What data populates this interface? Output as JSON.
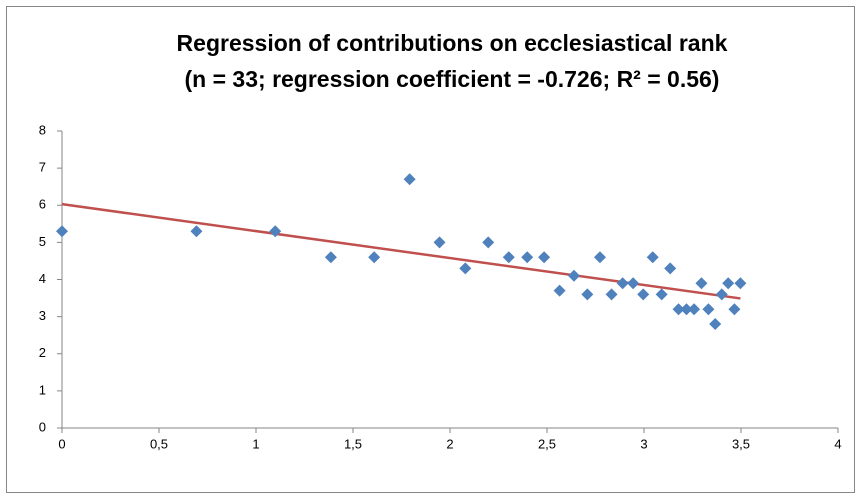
{
  "chart_data": {
    "type": "scatter",
    "title_lines": [
      "Regression of contributions on ecclesiastical rank",
      "(n = 33; regression coefficient = -0.726; R² = 0.56)"
    ],
    "series": [
      {
        "color": "#4f81bd",
        "x": [
          0,
          0.693,
          1.099,
          1.386,
          1.609,
          1.792,
          1.946,
          2.079,
          2.197,
          2.303,
          2.398,
          2.485,
          2.565,
          2.639,
          2.708,
          2.773,
          2.833,
          2.89,
          2.944,
          2.996,
          3.045,
          3.091,
          3.135,
          3.178,
          3.219,
          3.258,
          3.296,
          3.332,
          3.367,
          3.401,
          3.434,
          3.466,
          3.497
        ],
        "values": [
          5.3,
          5.3,
          5.3,
          4.6,
          4.6,
          6.7,
          5.0,
          4.3,
          5.0,
          4.6,
          4.6,
          4.6,
          3.7,
          4.1,
          3.6,
          4.6,
          3.6,
          3.9,
          3.9,
          3.6,
          4.6,
          3.6,
          4.3,
          3.2,
          3.2,
          3.2,
          3.9,
          3.2,
          2.8,
          3.6,
          3.9,
          3.2,
          3.9
        ]
      }
    ],
    "trendline": {
      "color": "#c0504d",
      "x": [
        0,
        3.497
      ],
      "values": [
        6.03,
        3.49
      ]
    },
    "xlim": [
      0,
      4
    ],
    "xticks": [
      0,
      {
        "value": 0.5,
        "label": "0,5"
      },
      1,
      {
        "value": 1.5,
        "label": "1,5"
      },
      2,
      {
        "value": 2.5,
        "label": "2,5"
      },
      3,
      {
        "value": 3.5,
        "label": "3,5"
      },
      4
    ],
    "ylim": [
      0,
      8
    ],
    "yticks": [
      0,
      1,
      2,
      3,
      4,
      5,
      6,
      7,
      8
    ]
  }
}
